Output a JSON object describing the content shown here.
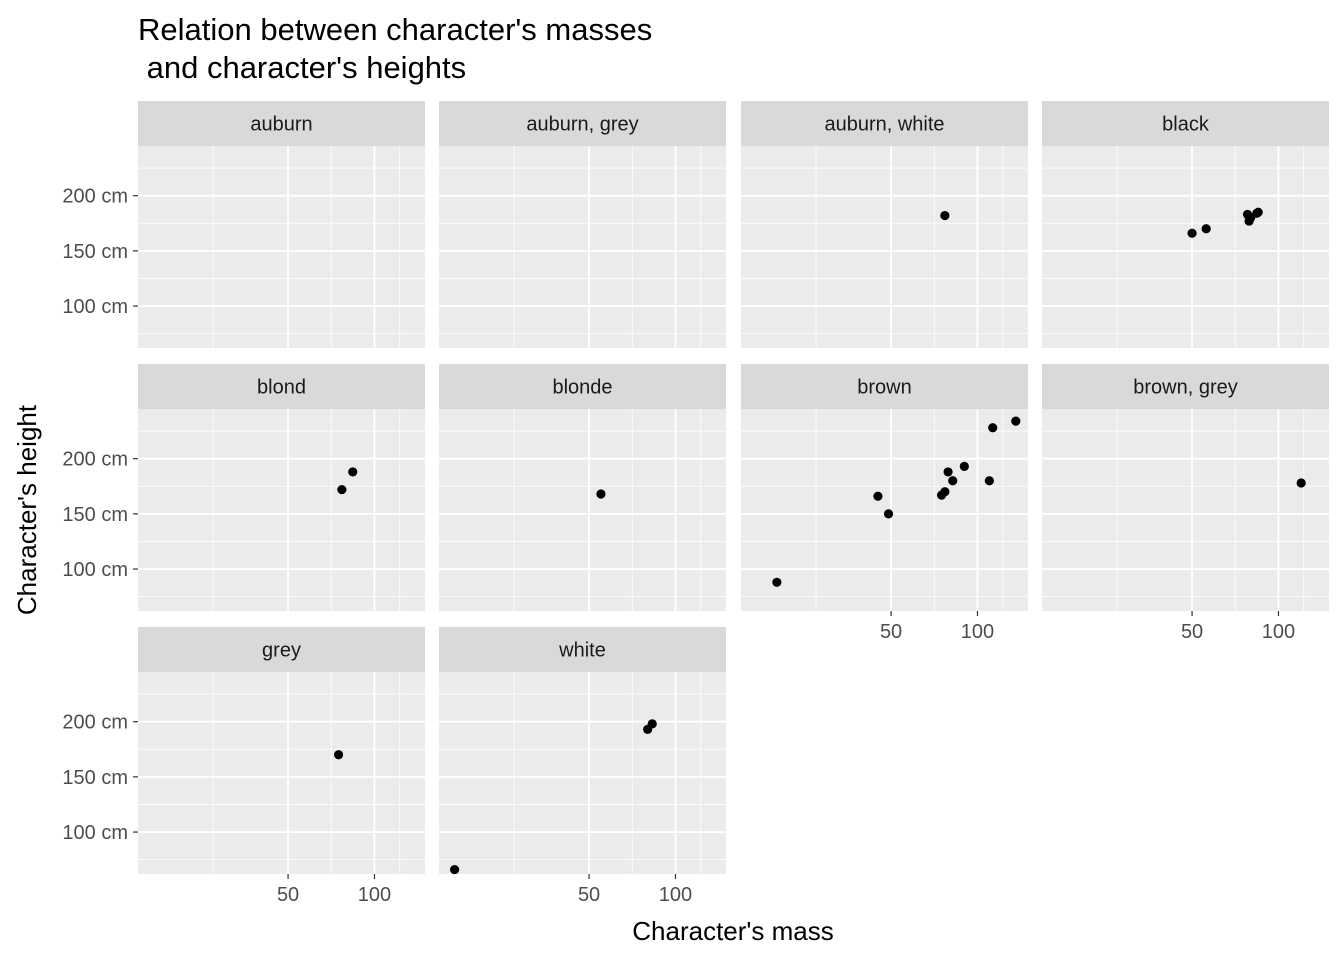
{
  "chart_data": {
    "type": "scatter",
    "title_lines": [
      "Relation between character's masses",
      " and character's heights"
    ],
    "xlabel": "Character's mass",
    "ylabel": "Character's height",
    "x_scale": "log10",
    "xlim": [
      15,
      150
    ],
    "ylim": [
      62,
      245
    ],
    "x_ticks": [
      50,
      100
    ],
    "x_tick_labels": [
      "50",
      "100"
    ],
    "y_ticks": [
      100,
      150,
      200
    ],
    "y_tick_labels": [
      "100 cm",
      "150 cm",
      "200 cm"
    ],
    "grid": true,
    "facets": [
      {
        "label": "auburn",
        "points": []
      },
      {
        "label": "auburn, grey",
        "points": []
      },
      {
        "label": "auburn, white",
        "points": [
          [
            77,
            182
          ]
        ]
      },
      {
        "label": "black",
        "points": [
          [
            50,
            166
          ],
          [
            56,
            170
          ],
          [
            78,
            183
          ],
          [
            79,
            177
          ],
          [
            84,
            184
          ],
          [
            85,
            185
          ],
          [
            80,
            180
          ]
        ]
      },
      {
        "label": "blond",
        "points": [
          [
            77,
            172
          ],
          [
            84,
            188
          ]
        ]
      },
      {
        "label": "blonde",
        "points": [
          [
            55,
            168
          ]
        ]
      },
      {
        "label": "brown",
        "points": [
          [
            20,
            88
          ],
          [
            45,
            166
          ],
          [
            49,
            150
          ],
          [
            75,
            167
          ],
          [
            77,
            170
          ],
          [
            79,
            188
          ],
          [
            82,
            180
          ],
          [
            90,
            193
          ],
          [
            110,
            180
          ],
          [
            113,
            228
          ],
          [
            136,
            234
          ]
        ]
      },
      {
        "label": "brown, grey",
        "points": [
          [
            120,
            178
          ]
        ]
      },
      {
        "label": "grey",
        "points": [
          [
            75,
            170
          ]
        ]
      },
      {
        "label": "white",
        "points": [
          [
            17,
            66
          ],
          [
            80,
            193
          ],
          [
            83,
            198
          ]
        ]
      }
    ]
  }
}
